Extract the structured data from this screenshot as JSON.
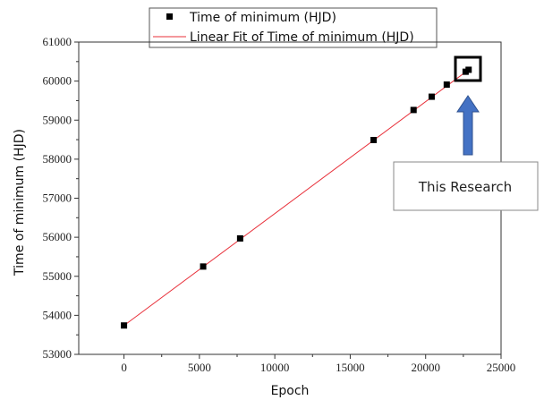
{
  "chart_data": {
    "type": "scatter",
    "xlabel": "Epoch",
    "ylabel": "Time of minimum (HJD)",
    "xlim": [
      -3000,
      25000
    ],
    "ylim": [
      53000,
      61000
    ],
    "x_ticks": [
      0,
      5000,
      10000,
      15000,
      20000,
      25000
    ],
    "y_ticks": [
      53000,
      54000,
      55000,
      56000,
      57000,
      58000,
      59000,
      60000,
      61000
    ],
    "series": [
      {
        "name": "Time of minimum (HJD)",
        "kind": "scatter",
        "marker": "square",
        "color": "#000000",
        "x": [
          0,
          5250,
          7700,
          16550,
          19200,
          20400,
          21400,
          22650,
          22850
        ],
        "y": [
          53740,
          55250,
          55970,
          58490,
          59260,
          59600,
          59910,
          60240,
          60290
        ]
      },
      {
        "name": "Linear Fit of Time of minimum (HJD)",
        "kind": "line",
        "color": "#e8303a",
        "x": [
          0,
          22850
        ],
        "y": [
          53740,
          60290
        ]
      }
    ],
    "legend_position": "top-center",
    "annotation": {
      "text": "This Research",
      "highlight_points": [
        7,
        8
      ],
      "arrow_color": "#4472c4"
    }
  }
}
